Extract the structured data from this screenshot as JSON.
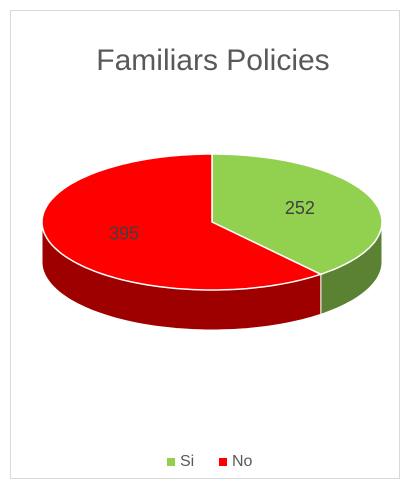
{
  "chart_data": {
    "type": "pie3d",
    "title": "Familiars Policies",
    "categories": [
      "Si",
      "No"
    ],
    "values": [
      252,
      395
    ],
    "colors": [
      "#92d050",
      "#ff0000"
    ],
    "legend": "bottom"
  }
}
